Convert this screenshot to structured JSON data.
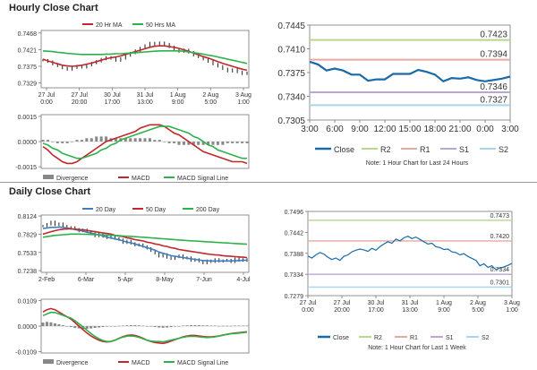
{
  "sections": {
    "hourly_title": "Hourly Close Chart",
    "daily_title": "Daily Close Chart"
  },
  "colors": {
    "price": "#222222",
    "ma_red": "#c0282d",
    "ma_green": "#2db24a",
    "ma_blue": "#3d7fc1",
    "close_blue": "#1a6aa8",
    "r2": "#b6d88c",
    "r1": "#e8a9a3",
    "s1": "#b9a7d1",
    "s2": "#a7d6ea",
    "divergence": "#888888"
  },
  "chart_data": [
    {
      "id": "hourly_price",
      "type": "line",
      "legend": [
        "20 Hr MA",
        "50 Hrs MA"
      ],
      "y_ticks": [
        "0.7468",
        "0.7421",
        "0.7375",
        "0.7329"
      ],
      "x_ticks": [
        "27 Jul\n0:00",
        "27 Jul\n20:00",
        "30 Jul\n17:00",
        "31 Jul\n13:00",
        "1 Aug\n9:00",
        "2 Aug\n5:00",
        "3 Aug\n1:00"
      ],
      "ylim": [
        0.7315,
        0.7475
      ],
      "price": [
        0.7392,
        0.7388,
        0.7381,
        0.7376,
        0.737,
        0.7366,
        0.7371,
        0.7376,
        0.7372,
        0.7378,
        0.7384,
        0.7389,
        0.7395,
        0.74,
        0.7397,
        0.7391,
        0.7397,
        0.7405,
        0.7412,
        0.7419,
        0.7426,
        0.7433,
        0.744,
        0.7436,
        0.7441,
        0.7437,
        0.7429,
        0.7423,
        0.7416,
        0.7421,
        0.7414,
        0.7406,
        0.7401,
        0.7395,
        0.7388,
        0.7381,
        0.7375,
        0.7368,
        0.7361,
        0.7366,
        0.7359,
        0.7354,
        0.7357
      ],
      "series": [
        {
          "name": "20 Hr MA",
          "values": [
            0.7395,
            0.739,
            0.7386,
            0.7382,
            0.7378,
            0.7376,
            0.7375,
            0.7376,
            0.7378,
            0.7381,
            0.7384,
            0.7388,
            0.7392,
            0.7396,
            0.7399,
            0.7401,
            0.7404,
            0.7408,
            0.7412,
            0.7416,
            0.742,
            0.7424,
            0.7428,
            0.7431,
            0.7432,
            0.7432,
            0.743,
            0.7428,
            0.7425,
            0.7421,
            0.7417,
            0.7412,
            0.7407,
            0.7402,
            0.7398,
            0.7393,
            0.7388,
            0.7383,
            0.7379,
            0.7375,
            0.7371,
            0.7367,
            0.7364
          ]
        },
        {
          "name": "50 Hrs MA",
          "values": [
            0.7418,
            0.7417,
            0.7416,
            0.7414,
            0.7413,
            0.7411,
            0.741,
            0.7409,
            0.7408,
            0.7408,
            0.7408,
            0.7408,
            0.7408,
            0.7409,
            0.7409,
            0.741,
            0.741,
            0.7411,
            0.7412,
            0.7413,
            0.7414,
            0.7415,
            0.7416,
            0.7417,
            0.7418,
            0.7418,
            0.7418,
            0.7418,
            0.7418,
            0.7417,
            0.7415,
            0.7413,
            0.7411,
            0.7409,
            0.7406,
            0.7404,
            0.7401,
            0.7398,
            0.7395,
            0.7392,
            0.7389,
            0.7386,
            0.7383
          ]
        }
      ]
    },
    {
      "id": "hourly_macd",
      "type": "line",
      "legend": [
        "Divergence",
        "MACD",
        "MACD Signal Line"
      ],
      "y_ticks": [
        "0.0015",
        "0.0000",
        "-0.0015"
      ],
      "ylim": [
        -0.0016,
        0.0016
      ],
      "divergence": [
        0.0001,
        0.0001,
        0.0,
        -0.0001,
        -0.0001,
        -0.0001,
        0.0,
        0.0001,
        0.0001,
        0.0002,
        0.0002,
        0.0003,
        0.0003,
        0.0003,
        0.0002,
        0.0002,
        0.0002,
        0.0002,
        0.0002,
        0.0002,
        0.0002,
        0.0002,
        0.0002,
        0.0001,
        0.0001,
        0.0,
        -0.0001,
        -0.0001,
        -0.0002,
        -0.0002,
        -0.0002,
        -0.0002,
        -0.0002,
        -0.0002,
        -0.0002,
        -0.0002,
        -0.0002,
        -0.0002,
        -0.0001,
        -0.0001,
        -0.0001,
        -0.0001,
        -0.0001
      ],
      "series": [
        {
          "name": "MACD",
          "values": [
            -0.0003,
            -0.0005,
            -0.0008,
            -0.001,
            -0.0012,
            -0.0013,
            -0.0013,
            -0.0012,
            -0.001,
            -0.0008,
            -0.0006,
            -0.0004,
            -0.0002,
            0.0,
            0.0001,
            0.0002,
            0.0003,
            0.0004,
            0.0005,
            0.0006,
            0.0008,
            0.0009,
            0.001,
            0.001,
            0.001,
            0.0009,
            0.0007,
            0.0005,
            0.0004,
            0.0002,
            0.0,
            -0.0002,
            -0.0004,
            -0.0006,
            -0.0007,
            -0.0008,
            -0.0009,
            -0.001,
            -0.0011,
            -0.0012,
            -0.0012,
            -0.0012,
            -0.0013
          ]
        },
        {
          "name": "MACD Signal Line",
          "values": [
            -0.0001,
            -0.0002,
            -0.0004,
            -0.0005,
            -0.0007,
            -0.0008,
            -0.0009,
            -0.001,
            -0.001,
            -0.0009,
            -0.0008,
            -0.0007,
            -0.0005,
            -0.0004,
            -0.0002,
            -0.0001,
            0.0001,
            0.0002,
            0.0003,
            0.0004,
            0.0005,
            0.0006,
            0.0007,
            0.0008,
            0.0009,
            0.0009,
            0.0009,
            0.0008,
            0.0007,
            0.0006,
            0.0005,
            0.0003,
            0.0002,
            0.0,
            -0.0002,
            -0.0003,
            -0.0005,
            -0.0006,
            -0.0007,
            -0.0008,
            -0.0009,
            -0.001,
            -0.001
          ]
        }
      ]
    },
    {
      "id": "hourly_24h",
      "type": "line",
      "y_ticks": [
        "0.7445",
        "0.7410",
        "0.7375",
        "0.7340",
        "0.7305"
      ],
      "x_ticks": [
        "3:00",
        "6:00",
        "9:00",
        "12:00",
        "15:00",
        "18:00",
        "21:00",
        "0:00",
        "3:00"
      ],
      "ylim": [
        0.7305,
        0.7445
      ],
      "levels": [
        {
          "name": "R2",
          "value": 0.7423,
          "label": "0.7423"
        },
        {
          "name": "R1",
          "value": 0.7394,
          "label": "0.7394"
        },
        {
          "name": "S1",
          "value": 0.7346,
          "label": "0.7346"
        },
        {
          "name": "S2",
          "value": 0.7327,
          "label": "0.7327"
        }
      ],
      "series": [
        {
          "name": "Close",
          "values": [
            0.7391,
            0.7387,
            0.7378,
            0.7381,
            0.7378,
            0.7372,
            0.7372,
            0.7363,
            0.7365,
            0.7365,
            0.7373,
            0.7373,
            0.7373,
            0.7379,
            0.7376,
            0.7372,
            0.7362,
            0.7367,
            0.7366,
            0.7368,
            0.7364,
            0.7362,
            0.7364,
            0.7366,
            0.7369
          ]
        }
      ],
      "legend": [
        "Close",
        "R2",
        "R1",
        "S1",
        "S2"
      ],
      "note": "Note: 1 Hour Chart for Last 24 Hours"
    },
    {
      "id": "daily_price",
      "type": "line",
      "legend": [
        "20 Day",
        "50 Day",
        "200 Day"
      ],
      "y_ticks": [
        "0.8124",
        "0.7829",
        "0.7533",
        "0.7238"
      ],
      "x_ticks": [
        "2-Feb",
        "6-Mar",
        "5-Apr",
        "8-May",
        "7-Jun",
        "4-Jul"
      ],
      "ylim": [
        0.721,
        0.814
      ],
      "price": [
        0.796,
        0.799,
        0.803,
        0.798,
        0.8,
        0.796,
        0.792,
        0.794,
        0.791,
        0.788,
        0.79,
        0.787,
        0.784,
        0.78,
        0.783,
        0.779,
        0.777,
        0.78,
        0.776,
        0.774,
        0.769,
        0.772,
        0.768,
        0.765,
        0.766,
        0.763,
        0.76,
        0.756,
        0.752,
        0.747,
        0.75,
        0.745,
        0.743,
        0.746,
        0.748,
        0.744,
        0.745,
        0.74,
        0.742,
        0.739,
        0.736,
        0.74,
        0.738,
        0.742,
        0.739,
        0.74,
        0.741,
        0.738,
        0.743,
        0.74,
        0.742,
        0.74
      ],
      "series": [
        {
          "name": "20 Day",
          "values": [
            0.792,
            0.793,
            0.794,
            0.794,
            0.7945,
            0.794,
            0.793,
            0.792,
            0.7905,
            0.789,
            0.788,
            0.786,
            0.785,
            0.783,
            0.782,
            0.78,
            0.778,
            0.777,
            0.775,
            0.774,
            0.772,
            0.77,
            0.769,
            0.767,
            0.765,
            0.763,
            0.761,
            0.759,
            0.757,
            0.754,
            0.752,
            0.75,
            0.748,
            0.747,
            0.746,
            0.745,
            0.744,
            0.743,
            0.742,
            0.741,
            0.74,
            0.74,
            0.7395,
            0.7395,
            0.7395,
            0.7395,
            0.7395,
            0.7395,
            0.74,
            0.74,
            0.7405,
            0.7405
          ]
        },
        {
          "name": "50 Day",
          "values": [
            0.783,
            0.785,
            0.787,
            0.7885,
            0.79,
            0.791,
            0.7915,
            0.7915,
            0.791,
            0.7905,
            0.79,
            0.789,
            0.788,
            0.787,
            0.786,
            0.785,
            0.784,
            0.783,
            0.781,
            0.78,
            0.779,
            0.777,
            0.776,
            0.774,
            0.773,
            0.772,
            0.77,
            0.769,
            0.767,
            0.766,
            0.764,
            0.763,
            0.761,
            0.76,
            0.758,
            0.757,
            0.756,
            0.755,
            0.754,
            0.753,
            0.752,
            0.751,
            0.75,
            0.7495,
            0.749,
            0.748,
            0.7475,
            0.747,
            0.7465,
            0.746,
            0.7455,
            0.745
          ]
        },
        {
          "name": "200 Day",
          "values": [
            0.778,
            0.779,
            0.78,
            0.781,
            0.7815,
            0.782,
            0.7825,
            0.783,
            0.783,
            0.783,
            0.7828,
            0.7826,
            0.7824,
            0.7822,
            0.782,
            0.7818,
            0.7815,
            0.7812,
            0.7808,
            0.7805,
            0.78,
            0.7796,
            0.7792,
            0.7788,
            0.7784,
            0.778,
            0.7775,
            0.777,
            0.7765,
            0.776,
            0.7755,
            0.775,
            0.7745,
            0.774,
            0.7735,
            0.773,
            0.7726,
            0.7722,
            0.7718,
            0.7714,
            0.771,
            0.7706,
            0.7702,
            0.7698,
            0.7694,
            0.769,
            0.7686,
            0.7682,
            0.7678,
            0.7674,
            0.767,
            0.7666
          ]
        }
      ]
    },
    {
      "id": "daily_macd",
      "type": "line",
      "legend": [
        "Divergence",
        "MACD",
        "MACD Signal Line"
      ],
      "y_ticks": [
        "0.0109",
        "0.0000",
        "-0.0109"
      ],
      "ylim": [
        -0.0115,
        0.0115
      ],
      "divergence": [
        0.0015,
        0.0018,
        0.0016,
        0.0012,
        0.0008,
        0.0004,
        0.0,
        -0.0004,
        -0.0008,
        -0.001,
        -0.0012,
        -0.0012,
        -0.001,
        -0.0008,
        -0.0006,
        -0.0004,
        -0.0002,
        -0.0001,
        0.0,
        0.0001,
        0.0002,
        0.0003,
        0.0004,
        0.0004,
        0.0003,
        0.0002,
        0.0,
        -0.0002,
        -0.0004,
        -0.0006,
        -0.0007,
        -0.0006,
        -0.0004,
        -0.0002,
        0.0,
        0.0002,
        0.0003,
        0.0004,
        0.0004,
        0.0004,
        0.0003,
        0.0003,
        0.0002,
        0.0002,
        0.0001,
        0.0001,
        0.0001,
        0.0001,
        0.0002,
        0.0002,
        0.0002,
        0.0002
      ],
      "series": [
        {
          "name": "MACD",
          "values": [
            0.006,
            0.007,
            0.0075,
            0.007,
            0.006,
            0.005,
            0.004,
            0.003,
            0.0015,
            0.0,
            -0.0015,
            -0.003,
            -0.0042,
            -0.0052,
            -0.006,
            -0.0066,
            -0.0068,
            -0.0066,
            -0.006,
            -0.0052,
            -0.0045,
            -0.004,
            -0.0038,
            -0.004,
            -0.0045,
            -0.0052,
            -0.006,
            -0.0066,
            -0.007,
            -0.0072,
            -0.0074,
            -0.007,
            -0.0064,
            -0.0058,
            -0.0052,
            -0.0046,
            -0.0042,
            -0.004,
            -0.004,
            -0.0042,
            -0.0044,
            -0.0046,
            -0.0046,
            -0.0044,
            -0.0042,
            -0.0038,
            -0.0035,
            -0.0032,
            -0.003,
            -0.0028,
            -0.0026,
            -0.0024
          ]
        },
        {
          "name": "MACD Signal Line",
          "values": [
            0.0045,
            0.0052,
            0.0059,
            0.0058,
            0.0052,
            0.0046,
            0.004,
            0.0034,
            0.0023,
            0.001,
            -0.0003,
            -0.0018,
            -0.0032,
            -0.0044,
            -0.0054,
            -0.0062,
            -0.0066,
            -0.0065,
            -0.006,
            -0.0053,
            -0.0047,
            -0.0043,
            -0.0042,
            -0.0044,
            -0.0048,
            -0.0054,
            -0.006,
            -0.0064,
            -0.0066,
            -0.0066,
            -0.0067,
            -0.0064,
            -0.006,
            -0.0056,
            -0.0052,
            -0.0048,
            -0.0045,
            -0.0044,
            -0.0044,
            -0.0046,
            -0.0047,
            -0.0049,
            -0.0048,
            -0.0046,
            -0.0043,
            -0.0039,
            -0.0036,
            -0.0033,
            -0.0032,
            -0.003,
            -0.0028,
            -0.0026
          ]
        }
      ]
    },
    {
      "id": "daily_week",
      "type": "line",
      "y_ticks": [
        "0.7496",
        "0.7442",
        "0.7388",
        "0.7334",
        "0.7279"
      ],
      "x_ticks": [
        "27 Jul\n0:00",
        "27 Jul\n20:00",
        "30 Jul\n17:00",
        "31 Jul\n13:00",
        "1 Aug\n9:00",
        "2 Aug\n5:00",
        "3 Aug\n1:00"
      ],
      "ylim": [
        0.7279,
        0.7496
      ],
      "levels": [
        {
          "name": "R2",
          "value": 0.7473,
          "label": "0.7473"
        },
        {
          "name": "R1",
          "value": 0.742,
          "label": "0.7420"
        },
        {
          "name": "S1",
          "value": 0.7334,
          "label": "0.7334"
        },
        {
          "name": "S2",
          "value": 0.7301,
          "label": "0.7301"
        }
      ],
      "series": [
        {
          "name": "Close",
          "values": [
            0.7381,
            0.7376,
            0.7384,
            0.739,
            0.7386,
            0.7378,
            0.7372,
            0.7376,
            0.737,
            0.738,
            0.7384,
            0.7392,
            0.7396,
            0.7399,
            0.7397,
            0.7393,
            0.7401,
            0.7396,
            0.7405,
            0.7412,
            0.7418,
            0.7414,
            0.7425,
            0.742,
            0.7428,
            0.7432,
            0.7426,
            0.743,
            0.7424,
            0.7418,
            0.7412,
            0.7414,
            0.7405,
            0.7403,
            0.7398,
            0.7399,
            0.7392,
            0.739,
            0.7384,
            0.7387,
            0.738,
            0.7375,
            0.737,
            0.7356,
            0.7361,
            0.7352,
            0.7356,
            0.7346,
            0.735,
            0.7353,
            0.7357,
            0.7362
          ]
        }
      ],
      "legend": [
        "Close",
        "R2",
        "R1",
        "S1",
        "S2"
      ],
      "note": "Note: 1 Hour Chart for Last 1 Week"
    }
  ]
}
